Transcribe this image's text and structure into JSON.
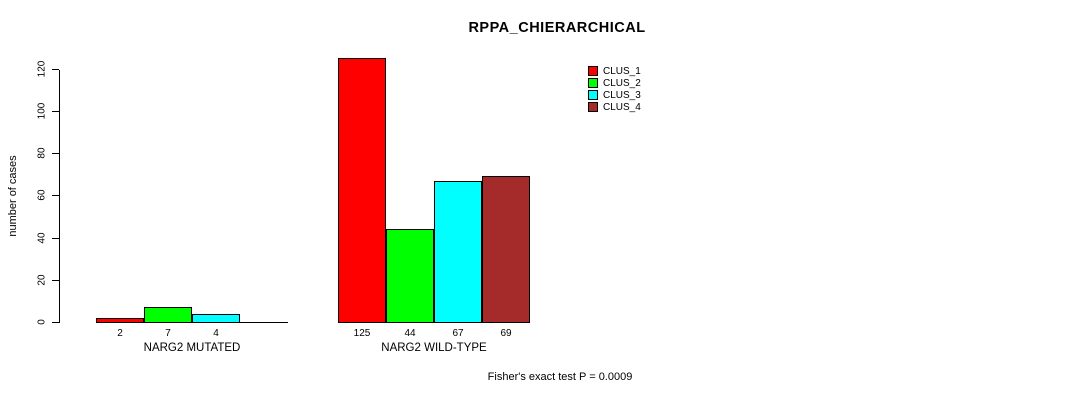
{
  "title": "RPPA_CHIERARCHICAL",
  "footer": "Fisher's exact test P = 0.0009",
  "chart_data": {
    "type": "bar",
    "title": "RPPA_CHIERARCHICAL",
    "xlabel": "",
    "ylabel": "number of cases",
    "ylim": [
      0,
      130
    ],
    "yticks": [
      0,
      20,
      40,
      60,
      80,
      100,
      120
    ],
    "grid": false,
    "legend_position": "top-right",
    "categories": [
      "NARG2 MUTATED",
      "NARG2 WILD-TYPE"
    ],
    "series": [
      {
        "name": "CLUS_1",
        "color": "#ff0000",
        "values": [
          2,
          125
        ]
      },
      {
        "name": "CLUS_2",
        "color": "#00ff00",
        "values": [
          7,
          44
        ]
      },
      {
        "name": "CLUS_3",
        "color": "#00ffff",
        "values": [
          4,
          67
        ]
      },
      {
        "name": "CLUS_4",
        "color": "#a52a2a",
        "values": [
          0,
          69
        ]
      }
    ],
    "bar_value_labels": [
      [
        "2",
        "7",
        "4",
        ""
      ],
      [
        "125",
        "44",
        "67",
        "69"
      ]
    ],
    "annotation": "Fisher's exact test P = 0.0009"
  }
}
